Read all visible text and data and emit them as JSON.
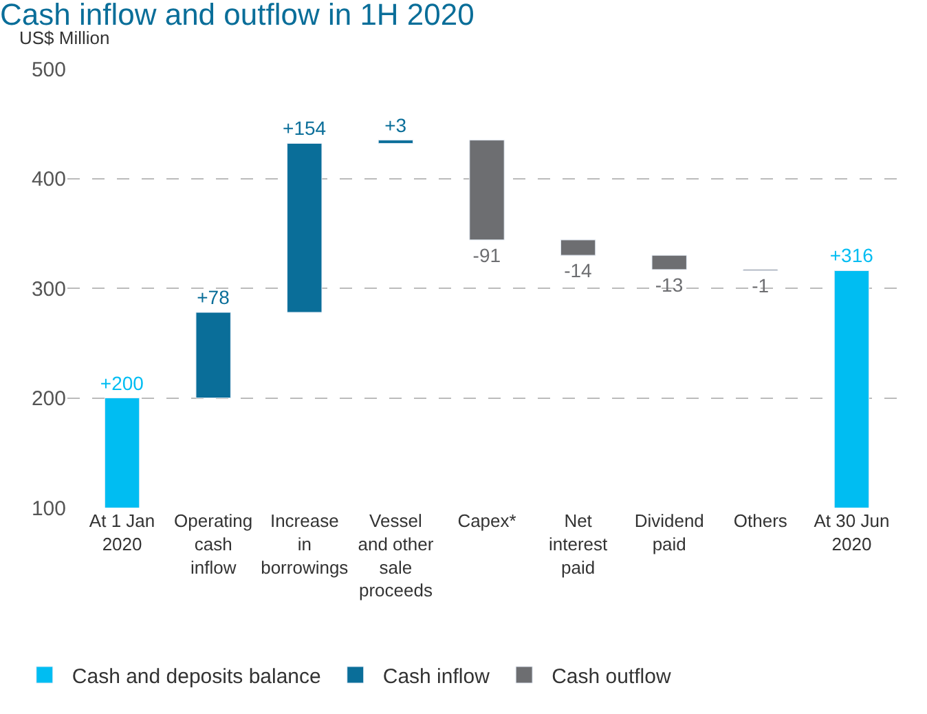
{
  "chart_data": {
    "type": "bar",
    "title": "Cash inflow and outflow in 1H 2020",
    "ylabel": "US$ Million",
    "categories": [
      "At 1 Jan\n2020",
      "Operating\ncash\ninflow",
      "Increase\nin\nborrowings",
      "Vessel\nand other\nsale\nproceeds",
      "Capex*",
      "Net\ninterest\npaid",
      "Dividend\npaid",
      "Others",
      "At 30 Jun\n2020"
    ],
    "series": [
      {
        "name": "Cash and deposits balance",
        "color": "#00bdf2",
        "values": [
          200,
          null,
          null,
          null,
          null,
          null,
          null,
          null,
          316
        ],
        "base": [
          0,
          null,
          null,
          null,
          null,
          null,
          null,
          null,
          0
        ],
        "value_labels": [
          "+200",
          null,
          null,
          null,
          null,
          null,
          null,
          null,
          "+316"
        ]
      },
      {
        "name": "Cash inflow",
        "color": "#0a6e99",
        "values": [
          null,
          78,
          154,
          3,
          null,
          null,
          null,
          null,
          null
        ],
        "base": [
          null,
          200,
          278,
          432,
          null,
          null,
          null,
          null,
          null
        ],
        "value_labels": [
          null,
          "+78",
          "+154",
          "+3",
          null,
          null,
          null,
          null,
          null
        ]
      },
      {
        "name": "Cash outflow",
        "color": "#6d6e71",
        "values": [
          null,
          null,
          null,
          null,
          -91,
          -14,
          -13,
          -1,
          null
        ],
        "base": [
          null,
          null,
          null,
          null,
          435,
          344,
          330,
          317,
          null
        ],
        "value_labels": [
          null,
          null,
          null,
          null,
          "-91",
          "-14",
          "-13",
          "-1",
          null
        ]
      }
    ],
    "ylim": [
      100,
      500
    ],
    "yticks": [
      100,
      200,
      300,
      400,
      500
    ],
    "grid": "y",
    "legend": "bottom"
  }
}
